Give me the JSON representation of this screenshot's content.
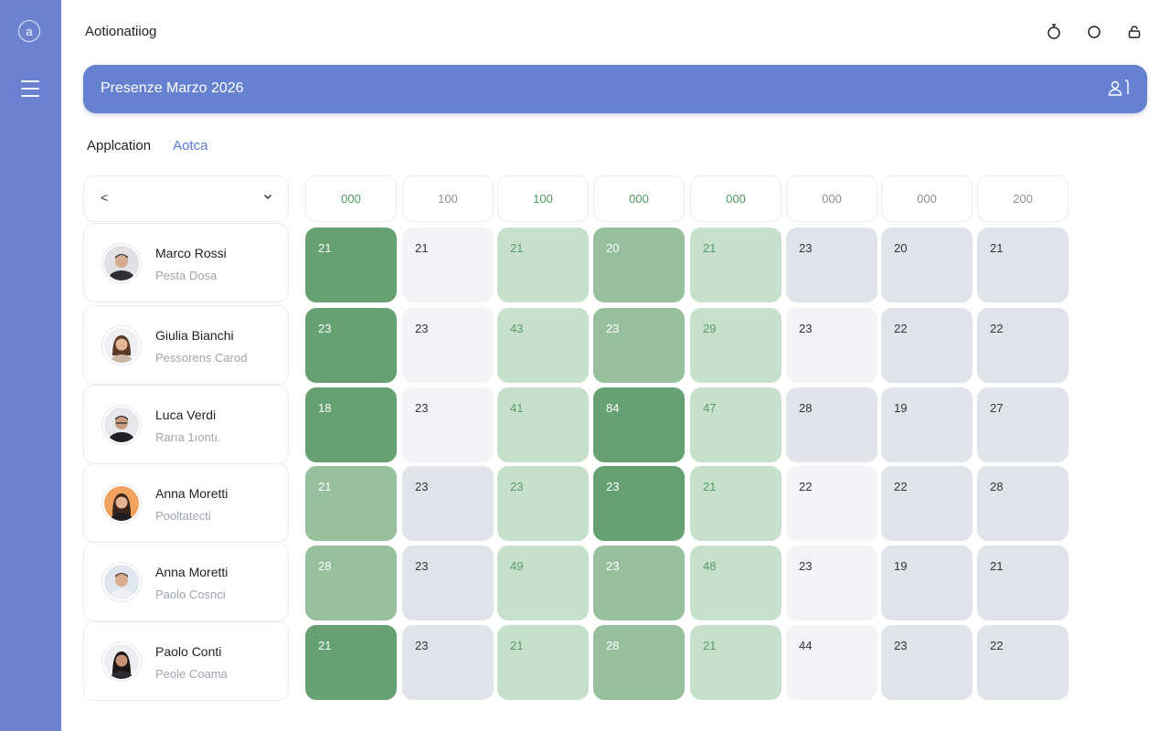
{
  "app": {
    "title": "Aotionatiiog",
    "logo_glyph": "a"
  },
  "banner": {
    "title": "Presenze Marzo 2026"
  },
  "tabs": [
    {
      "label": "Applcation",
      "active": false
    },
    {
      "label": "Aotca",
      "active": true
    }
  ],
  "nav": {
    "prev_glyph": "<",
    "dropdown_icon": "chevron-down-icon"
  },
  "columns": [
    "000",
    "100",
    "100",
    "000",
    "000",
    "000",
    "000",
    "200"
  ],
  "employees": [
    {
      "name": "Marco Rossi",
      "role": "Pesta Dosa"
    },
    {
      "name": "Giulia Bianchi",
      "role": "Pessorens Carod"
    },
    {
      "name": "Luca Verdi",
      "role": "Rarıa 1ıontı."
    },
    {
      "name": "Anna Moretti",
      "role": "Pooltatecti"
    },
    {
      "name": "Anna Moretti",
      "role": "Paolo Cosnci"
    },
    {
      "name": "Paolo Conti",
      "role": "Peole Coama"
    }
  ],
  "grid": [
    [
      {
        "v": "21",
        "t": "g1"
      },
      {
        "v": "21",
        "t": "n1"
      },
      {
        "v": "21",
        "t": "g3"
      },
      {
        "v": "20",
        "t": "g2"
      },
      {
        "v": "21",
        "t": "g3"
      },
      {
        "v": "23",
        "t": "n2"
      },
      {
        "v": "20",
        "t": "n2"
      },
      {
        "v": "21",
        "t": "n2"
      }
    ],
    [
      {
        "v": "23",
        "t": "g1"
      },
      {
        "v": "23",
        "t": "n1"
      },
      {
        "v": "43",
        "t": "g3"
      },
      {
        "v": "23",
        "t": "g2"
      },
      {
        "v": "29",
        "t": "g3"
      },
      {
        "v": "23",
        "t": "n1"
      },
      {
        "v": "22",
        "t": "n2"
      },
      {
        "v": "22",
        "t": "n2"
      }
    ],
    [
      {
        "v": "18",
        "t": "g1"
      },
      {
        "v": "23",
        "t": "n1"
      },
      {
        "v": "41",
        "t": "g3"
      },
      {
        "v": "84",
        "t": "g1"
      },
      {
        "v": "47",
        "t": "g3"
      },
      {
        "v": "28",
        "t": "n2"
      },
      {
        "v": "19",
        "t": "n2"
      },
      {
        "v": "27",
        "t": "n2"
      }
    ],
    [
      {
        "v": "21",
        "t": "g2"
      },
      {
        "v": "23",
        "t": "n2"
      },
      {
        "v": "23",
        "t": "g3"
      },
      {
        "v": "23",
        "t": "g1"
      },
      {
        "v": "21",
        "t": "g3"
      },
      {
        "v": "22",
        "t": "n1"
      },
      {
        "v": "22",
        "t": "n2"
      },
      {
        "v": "28",
        "t": "n2"
      }
    ],
    [
      {
        "v": "28",
        "t": "g2"
      },
      {
        "v": "23",
        "t": "n2"
      },
      {
        "v": "49",
        "t": "g3"
      },
      {
        "v": "23",
        "t": "g2"
      },
      {
        "v": "48",
        "t": "g3"
      },
      {
        "v": "23",
        "t": "n1"
      },
      {
        "v": "19",
        "t": "n2"
      },
      {
        "v": "21",
        "t": "n2"
      }
    ],
    [
      {
        "v": "21",
        "t": "g1"
      },
      {
        "v": "23",
        "t": "n2"
      },
      {
        "v": "21",
        "t": "g3"
      },
      {
        "v": "28",
        "t": "g2"
      },
      {
        "v": "21",
        "t": "g3"
      },
      {
        "v": "44",
        "t": "n1"
      },
      {
        "v": "23",
        "t": "n2"
      },
      {
        "v": "22",
        "t": "n2"
      }
    ]
  ],
  "colors": {
    "sidebar": "#6a82d0",
    "banner": "#6581cf",
    "green_strong": "#66a173",
    "green_mid": "#96c09d",
    "green_light": "#c7e0cc",
    "neutral_light": "#f1f3f6",
    "neutral_mid": "#dfe3ea",
    "header_green": "#4f9a5e",
    "header_gray": "#8c9099"
  },
  "icons": {
    "top": [
      "timer-icon",
      "circle-icon",
      "lock-icon"
    ],
    "banner": "user-icon"
  }
}
